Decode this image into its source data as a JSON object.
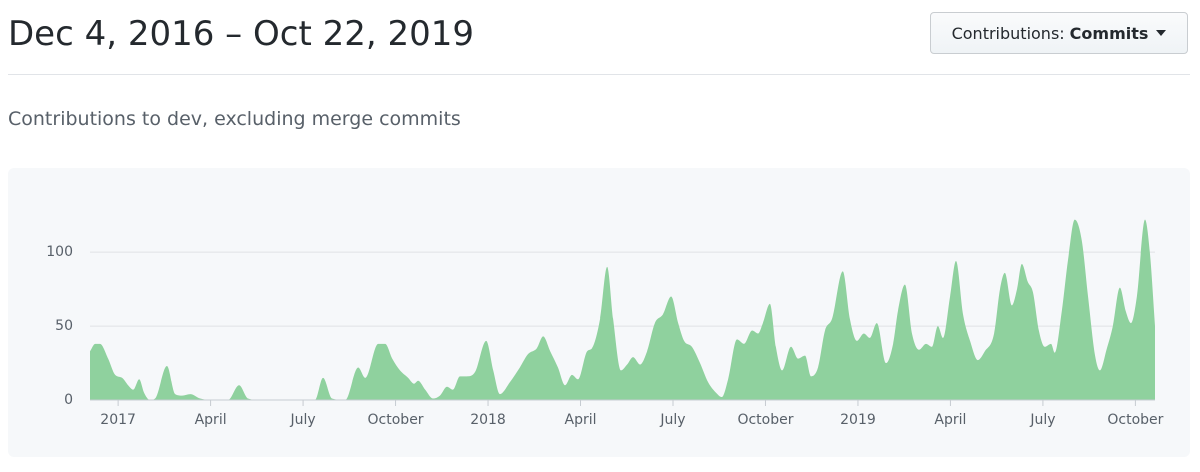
{
  "header": {
    "title": "Dec 4, 2016 – Oct 22, 2019",
    "button_label": "Contributions:",
    "button_value": "Commits"
  },
  "subtitle": "Contributions to dev, excluding merge commits",
  "chart_data": {
    "type": "area",
    "color": "#8fd19e",
    "x": [
      2016.924,
      2016.938,
      2016.951,
      2016.973,
      2016.992,
      2017.011,
      2017.027,
      2017.041,
      2017.057,
      2017.07,
      2017.086,
      2017.1,
      2017.132,
      2017.154,
      2017.173,
      2017.195,
      2017.222,
      2017.249,
      2017.297,
      2017.327,
      2017.351,
      2017.384,
      2017.532,
      2017.554,
      2017.578,
      2017.614,
      2017.649,
      2017.668,
      2017.703,
      2017.722,
      2017.741,
      2017.762,
      2017.784,
      2017.8,
      2017.811,
      2017.83,
      2017.851,
      2017.87,
      2017.889,
      2017.905,
      2017.924,
      2017.943,
      2017.965,
      2017.995,
      2018.014,
      2018.032,
      2018.059,
      2018.086,
      2018.108,
      2018.132,
      2018.149,
      2018.168,
      2018.189,
      2018.208,
      2018.227,
      2018.243,
      2018.268,
      2018.281,
      2018.303,
      2018.322,
      2018.338,
      2018.359,
      2018.376,
      2018.392,
      2018.411,
      2018.43,
      2018.451,
      2018.473,
      2018.495,
      2018.514,
      2018.53,
      2018.551,
      2018.573,
      2018.595,
      2018.616,
      2018.632,
      2018.649,
      2018.673,
      2018.692,
      2018.714,
      2018.73,
      2018.743,
      2018.762,
      2018.778,
      2018.795,
      2018.819,
      2018.838,
      2018.857,
      2018.873,
      2018.892,
      2018.911,
      2018.93,
      2018.959,
      2018.978,
      2018.997,
      2019.016,
      2019.032,
      2019.051,
      2019.076,
      2019.095,
      2019.108,
      2019.127,
      2019.146,
      2019.165,
      2019.184,
      2019.2,
      2019.216,
      2019.23,
      2019.249,
      2019.265,
      2019.284,
      2019.303,
      2019.324,
      2019.343,
      2019.368,
      2019.384,
      2019.397,
      2019.416,
      2019.43,
      2019.443,
      2019.459,
      2019.473,
      2019.489,
      2019.505,
      2019.522,
      2019.532,
      2019.551,
      2019.568,
      2019.586,
      2019.605,
      2019.622,
      2019.641,
      2019.654,
      2019.673,
      2019.689,
      2019.708,
      2019.724,
      2019.738,
      2019.754,
      2019.776,
      2019.789,
      2019.803
    ],
    "values": [
      33,
      38,
      38,
      28,
      17,
      15,
      10,
      7,
      14,
      5,
      0,
      1,
      23,
      4,
      3,
      4,
      1,
      0,
      0,
      10,
      1,
      0,
      0,
      15,
      1,
      0,
      22,
      15,
      38,
      38,
      28,
      20,
      15,
      11,
      13,
      7,
      1,
      3,
      9,
      7,
      16,
      16,
      19,
      40,
      20,
      4,
      12,
      22,
      31,
      35,
      43,
      33,
      22,
      10,
      17,
      14,
      33,
      35,
      55,
      90,
      55,
      20,
      24,
      29,
      24,
      33,
      52,
      58,
      70,
      52,
      40,
      36,
      25,
      12,
      5,
      2,
      14,
      41,
      38,
      47,
      45,
      52,
      65,
      36,
      20,
      36,
      28,
      30,
      16,
      22,
      47,
      55,
      87,
      55,
      40,
      45,
      42,
      52,
      25,
      38,
      60,
      78,
      45,
      34,
      38,
      36,
      50,
      42,
      70,
      94,
      58,
      40,
      27,
      33,
      45,
      75,
      86,
      64,
      75,
      92,
      80,
      73,
      47,
      36,
      38,
      32,
      60,
      95,
      122,
      108,
      70,
      30,
      20,
      35,
      50,
      76,
      60,
      52,
      70,
      122,
      100,
      50
    ],
    "xlim": [
      2016.924,
      2019.803
    ],
    "xticks": [
      2017,
      {
        "value": 2017.25,
        "label": "April"
      },
      {
        "value": 2017.5,
        "label": "July"
      },
      {
        "value": 2017.75,
        "label": "October"
      },
      2018,
      {
        "value": 2018.25,
        "label": "April"
      },
      {
        "value": 2018.5,
        "label": "July"
      },
      {
        "value": 2018.75,
        "label": "October"
      },
      2019,
      {
        "value": 2019.25,
        "label": "April"
      },
      {
        "value": 2019.5,
        "label": "July"
      },
      {
        "value": 2019.75,
        "label": "October"
      }
    ],
    "ylim": [
      0,
      140
    ],
    "yticks": [
      0,
      50,
      100
    ],
    "grid": true
  }
}
